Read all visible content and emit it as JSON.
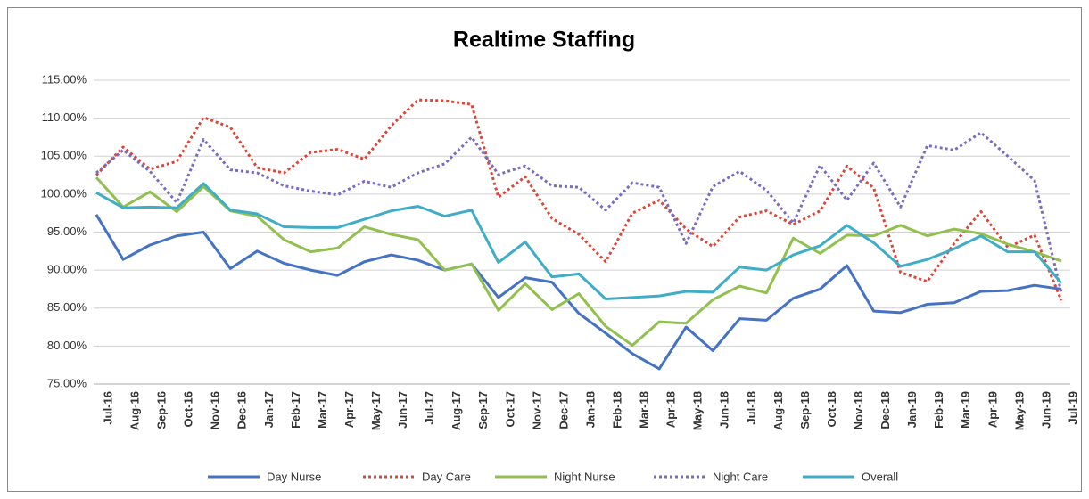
{
  "chart_data": {
    "type": "line",
    "title": "Realtime Staffing",
    "categories": [
      "Jul-16",
      "Aug-16",
      "Sep-16",
      "Oct-16",
      "Nov-16",
      "Dec-16",
      "Jan-17",
      "Feb-17",
      "Mar-17",
      "Apr-17",
      "May-17",
      "Jun-17",
      "Jul-17",
      "Aug-17",
      "Sep-17",
      "Oct-17",
      "Nov-17",
      "Dec-17",
      "Jan-18",
      "Feb-18",
      "Mar-18",
      "Apr-18",
      "May-18",
      "Jun-18",
      "Jul-18",
      "Aug-18",
      "Sep-18",
      "Oct-18",
      "Nov-18",
      "Dec-18",
      "Jan-19",
      "Feb-19",
      "Mar-19",
      "Apr-19",
      "May-19",
      "Jun-19",
      "Jul-19"
    ],
    "series": [
      {
        "name": "Day Nurse",
        "color": "#4472c4",
        "dash": "solid",
        "values": [
          97.3,
          91.4,
          93.3,
          94.5,
          95,
          90.2,
          92.5,
          90.9,
          90,
          89.3,
          91.1,
          92,
          91.3,
          90,
          90.8,
          86.4,
          89,
          88.4,
          84.3,
          81.7,
          79,
          77,
          82.5,
          79.4,
          83.6,
          83.4,
          86.3,
          87.5,
          90.6,
          84.6,
          84.4,
          85.5,
          85.7,
          87.2,
          87.3,
          88,
          87.5
        ]
      },
      {
        "name": "Day Care",
        "color": "#d9463a",
        "dash": "dotted",
        "values": [
          102.5,
          106.2,
          103.3,
          104.3,
          110.1,
          108.8,
          103.5,
          102.8,
          105.5,
          105.9,
          104.6,
          109,
          112.4,
          112.3,
          111.8,
          99.6,
          102.3,
          96.8,
          94.7,
          91.1,
          97.5,
          99.2,
          95.4,
          93.1,
          97,
          97.8,
          96,
          97.8,
          103.7,
          100.8,
          89.7,
          88.5,
          93.5,
          97.7,
          93,
          94.6,
          86
        ]
      },
      {
        "name": "Night Nurse",
        "color": "#92c04f",
        "dash": "solid",
        "values": [
          102.2,
          98.3,
          100.3,
          97.7,
          101,
          97.8,
          97.1,
          94,
          92.4,
          92.9,
          95.7,
          94.7,
          94,
          90,
          90.8,
          84.7,
          88.2,
          84.8,
          86.9,
          82.6,
          80.1,
          83.2,
          83,
          86.1,
          87.9,
          87,
          94.2,
          92.2,
          94.6,
          94.5,
          95.9,
          94.5,
          95.4,
          94.8,
          93.4,
          92.4,
          91.2
        ]
      },
      {
        "name": "Night Care",
        "color": "#7a6bbf",
        "dash": "dotted",
        "values": [
          102.8,
          105.8,
          103,
          98.9,
          107.2,
          103.2,
          102.8,
          101.1,
          100.4,
          99.9,
          101.7,
          100.9,
          102.8,
          104,
          107.5,
          102.6,
          103.7,
          101.1,
          100.9,
          97.9,
          101.5,
          100.9,
          93.5,
          101,
          103,
          100.5,
          96.2,
          103.8,
          99.2,
          104.1,
          98.3,
          106.4,
          105.8,
          108.1,
          105,
          101.8,
          87
        ]
      },
      {
        "name": "Overall",
        "color": "#3fadc8",
        "dash": "solid",
        "values": [
          100.2,
          98.2,
          98.3,
          98.2,
          101.4,
          97.9,
          97.4,
          95.7,
          95.6,
          95.6,
          96.7,
          97.8,
          98.4,
          97.1,
          97.9,
          91,
          93.7,
          89.1,
          89.5,
          86.2,
          86.4,
          86.6,
          87.2,
          87.1,
          90.4,
          90,
          92,
          93.2,
          95.9,
          93.6,
          90.5,
          91.4,
          92.8,
          94.5,
          92.4,
          92.4,
          88.3
        ]
      }
    ],
    "ylim": [
      75,
      115
    ],
    "yticks": [
      {
        "value": 75,
        "label": "75.00%"
      },
      {
        "value": 80,
        "label": "80.00%"
      },
      {
        "value": 85,
        "label": "85.00%"
      },
      {
        "value": 90,
        "label": "90.00%"
      },
      {
        "value": 95,
        "label": "95.00%"
      },
      {
        "value": 100,
        "label": "100.00%"
      },
      {
        "value": 105,
        "label": "105.00%"
      },
      {
        "value": 110,
        "label": "110.00%"
      },
      {
        "value": 115,
        "label": "115.00%"
      }
    ],
    "grid": true,
    "legend": "bottom"
  }
}
